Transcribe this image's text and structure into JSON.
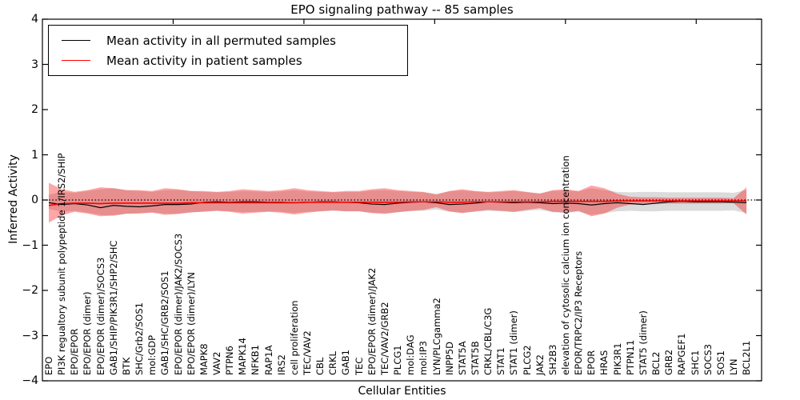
{
  "title": "EPO signaling pathway -- 85 samples",
  "axes": {
    "ylabel": "Inferred Activity",
    "xlabel": "Cellular Entities",
    "yticks": [
      {
        "value": 4,
        "label": "4"
      },
      {
        "value": 3,
        "label": "3"
      },
      {
        "value": 2,
        "label": "2"
      },
      {
        "value": 1,
        "label": "1"
      },
      {
        "value": 0,
        "label": "0"
      },
      {
        "value": -1,
        "label": "−1"
      },
      {
        "value": -2,
        "label": "−2"
      },
      {
        "value": -3,
        "label": "−3"
      },
      {
        "value": -4,
        "label": "−4"
      }
    ],
    "top_tick_positions": [
      10,
      20,
      30,
      40,
      50
    ],
    "ylim": [
      -4,
      4
    ]
  },
  "legend": {
    "entries": [
      {
        "label": "Mean activity in all permuted samples",
        "color": "#000000"
      },
      {
        "label": "Mean activity in patient samples",
        "color": "#ff0000"
      }
    ]
  },
  "chart_data": {
    "type": "line",
    "title": "EPO signaling pathway -- 85 samples",
    "xlabel": "Cellular Entities",
    "ylabel": "Inferred Activity",
    "ylim": [
      -4,
      4
    ],
    "grid": false,
    "legend_position": "upper left",
    "zero_line": 0,
    "categories": [
      "EPO",
      "PI3K regualtory subunit polypeptide 1/IRS2/SHIP",
      "EPO/EPOR",
      "EPO/EPOR (dimer)",
      "EPO/EPOR (dimer)/SOCS3",
      "GAB1/SHIP/PIK3R1/SHP2/SHC",
      "BTK",
      "SHC/Grb2/SOS1",
      "mol:GDP",
      "GAB1/SHC/GRB2/SOS1",
      "EPO/EPOR (dimer)/JAK2/SOCS3",
      "EPO/EPOR (dimer)/LYN",
      "MAPK8",
      "VAV2",
      "PTPN6",
      "MAPK14",
      "NFKB1",
      "RAP1A",
      "IRS2",
      "cell proliferation",
      "TEC/VAV2",
      "CBL",
      "CRKL",
      "GAB1",
      "TEC",
      "EPO/EPOR (dimer)/JAK2",
      "TEC/VAV2/GRB2",
      "PLCG1",
      "mol:DAG",
      "mol:IP3",
      "LYN/PLCgamma2",
      "INPP5D",
      "STAT5A",
      "STAT5B",
      "CRKL/CBL/C3G",
      "STAT1",
      "STAT1 (dimer)",
      "PLCG2",
      "JAK2",
      "SH2B3",
      "elevation of cytosolic calcium ion concentration",
      "EPOR/TRPC2/IP3 Receptors",
      "EPOR",
      "HRAS",
      "PIK3R1",
      "PTPN11",
      "STAT5 (dimer)",
      "BCL2",
      "GRB2",
      "RAPGEF1",
      "SHC1",
      "SOCS3",
      "SOS1",
      "LYN",
      "BCL2L1"
    ],
    "series": [
      {
        "name": "Mean activity in all permuted samples",
        "color": "#000000",
        "values": [
          -0.06,
          -0.1,
          -0.08,
          -0.11,
          -0.17,
          -0.12,
          -0.14,
          -0.15,
          -0.13,
          -0.1,
          -0.1,
          -0.09,
          -0.05,
          -0.04,
          -0.05,
          -0.04,
          -0.04,
          -0.05,
          -0.05,
          -0.06,
          -0.05,
          -0.04,
          -0.04,
          -0.05,
          -0.06,
          -0.09,
          -0.1,
          -0.07,
          -0.05,
          -0.04,
          -0.06,
          -0.1,
          -0.09,
          -0.07,
          -0.04,
          -0.05,
          -0.06,
          -0.05,
          -0.06,
          -0.08,
          -0.07,
          -0.08,
          -0.11,
          -0.08,
          -0.06,
          -0.08,
          -0.1,
          -0.07,
          -0.04,
          -0.03,
          -0.04,
          -0.04,
          -0.04,
          -0.05,
          -0.06
        ]
      },
      {
        "name": "Mean activity in patient samples",
        "color": "#ff0000",
        "values": [
          -0.12,
          -0.08,
          -0.07,
          -0.07,
          -0.08,
          -0.07,
          -0.07,
          -0.07,
          -0.07,
          -0.07,
          -0.07,
          -0.06,
          -0.06,
          -0.06,
          -0.06,
          -0.06,
          -0.06,
          -0.06,
          -0.06,
          -0.06,
          -0.05,
          -0.05,
          -0.05,
          -0.05,
          -0.05,
          -0.05,
          -0.05,
          -0.05,
          -0.04,
          -0.04,
          -0.04,
          -0.05,
          -0.05,
          -0.04,
          -0.04,
          -0.04,
          -0.04,
          -0.04,
          -0.04,
          -0.03,
          -0.03,
          -0.03,
          -0.03,
          -0.03,
          -0.02,
          -0.02,
          -0.02,
          -0.02,
          -0.02,
          -0.02,
          -0.02,
          -0.02,
          -0.02,
          -0.02,
          -0.02
        ]
      }
    ],
    "bands": [
      {
        "name": "permuted-samples-band",
        "color": "#999999",
        "opacity": 0.35,
        "upper": [
          0.12,
          0.18,
          0.16,
          0.2,
          0.24,
          0.26,
          0.22,
          0.2,
          0.18,
          0.22,
          0.22,
          0.2,
          0.18,
          0.17,
          0.18,
          0.2,
          0.19,
          0.18,
          0.19,
          0.22,
          0.19,
          0.18,
          0.17,
          0.18,
          0.18,
          0.21,
          0.22,
          0.2,
          0.18,
          0.17,
          0.14,
          0.19,
          0.21,
          0.19,
          0.17,
          0.18,
          0.2,
          0.17,
          0.15,
          0.2,
          0.21,
          0.19,
          0.26,
          0.22,
          0.18,
          0.17,
          0.18,
          0.18,
          0.17,
          0.17,
          0.17,
          0.17,
          0.17,
          0.16,
          0.22
        ],
        "lower": [
          -0.2,
          -0.26,
          -0.24,
          -0.28,
          -0.33,
          -0.35,
          -0.31,
          -0.29,
          -0.27,
          -0.3,
          -0.3,
          -0.28,
          -0.25,
          -0.24,
          -0.25,
          -0.27,
          -0.26,
          -0.25,
          -0.26,
          -0.29,
          -0.26,
          -0.25,
          -0.24,
          -0.25,
          -0.25,
          -0.28,
          -0.29,
          -0.27,
          -0.25,
          -0.24,
          -0.21,
          -0.26,
          -0.28,
          -0.26,
          -0.24,
          -0.25,
          -0.27,
          -0.24,
          -0.22,
          -0.27,
          -0.28,
          -0.26,
          -0.33,
          -0.29,
          -0.25,
          -0.24,
          -0.25,
          -0.25,
          -0.24,
          -0.24,
          -0.24,
          -0.24,
          -0.24,
          -0.23,
          -0.29
        ]
      },
      {
        "name": "patient-samples-band",
        "color": "#ff0000",
        "opacity": 0.35,
        "upper": [
          0.38,
          0.24,
          0.18,
          0.22,
          0.28,
          0.26,
          0.22,
          0.22,
          0.2,
          0.26,
          0.24,
          0.2,
          0.2,
          0.18,
          0.2,
          0.24,
          0.22,
          0.2,
          0.22,
          0.26,
          0.22,
          0.2,
          0.18,
          0.2,
          0.2,
          0.24,
          0.26,
          0.22,
          0.2,
          0.18,
          0.12,
          0.2,
          0.24,
          0.2,
          0.18,
          0.2,
          0.22,
          0.18,
          0.14,
          0.22,
          0.24,
          0.2,
          0.32,
          0.26,
          0.14,
          0.07,
          0.06,
          0.06,
          0.05,
          0.05,
          0.05,
          0.05,
          0.05,
          0.04,
          0.28
        ],
        "lower": [
          -0.5,
          -0.34,
          -0.26,
          -0.3,
          -0.36,
          -0.34,
          -0.3,
          -0.3,
          -0.28,
          -0.33,
          -0.31,
          -0.27,
          -0.26,
          -0.24,
          -0.26,
          -0.3,
          -0.28,
          -0.26,
          -0.28,
          -0.32,
          -0.28,
          -0.25,
          -0.23,
          -0.25,
          -0.25,
          -0.29,
          -0.31,
          -0.27,
          -0.24,
          -0.22,
          -0.16,
          -0.25,
          -0.29,
          -0.25,
          -0.22,
          -0.24,
          -0.26,
          -0.22,
          -0.18,
          -0.26,
          -0.28,
          -0.24,
          -0.36,
          -0.3,
          -0.17,
          -0.1,
          -0.09,
          -0.09,
          -0.08,
          -0.08,
          -0.08,
          -0.08,
          -0.08,
          -0.07,
          -0.32
        ]
      }
    ]
  }
}
